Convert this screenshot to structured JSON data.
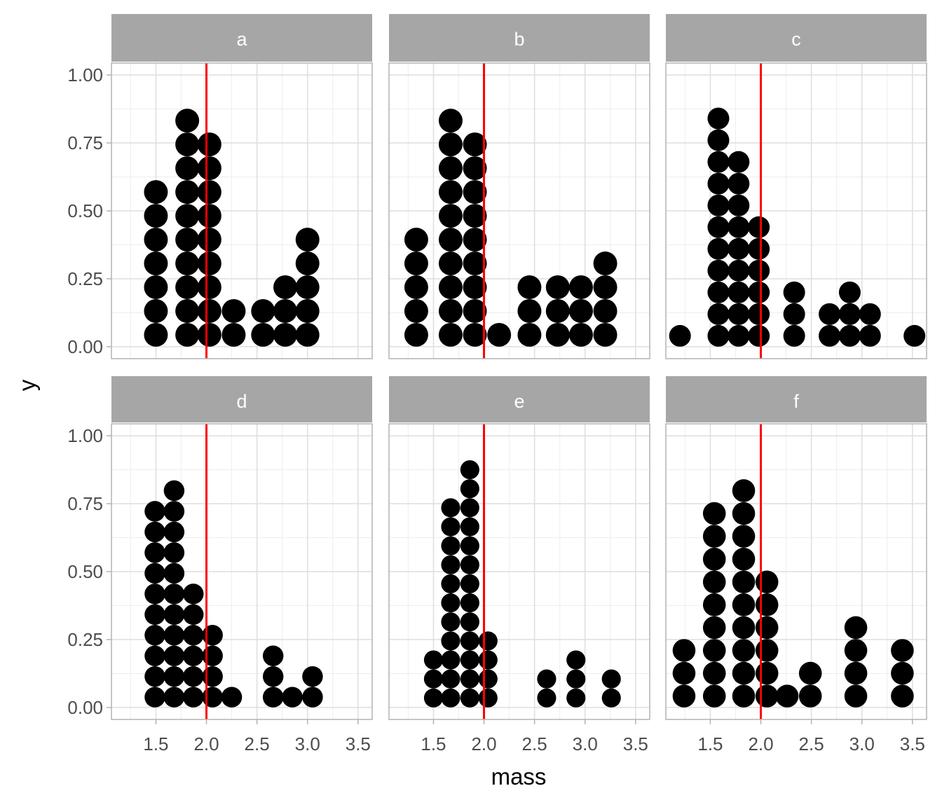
{
  "chart_data": {
    "type": "dotplot",
    "xlabel": "mass",
    "ylabel": "y",
    "xlim": [
      1.06,
      3.64
    ],
    "ylim": [
      -0.044,
      1.044
    ],
    "x_ticks": [
      "1.5",
      "2.0",
      "2.5",
      "3.0",
      "3.5"
    ],
    "x_tick_values": [
      1.5,
      2.0,
      2.5,
      3.0,
      3.5
    ],
    "y_ticks": [
      "0.00",
      "0.25",
      "0.50",
      "0.75",
      "1.00"
    ],
    "y_tick_values": [
      0,
      0.25,
      0.5,
      0.75,
      1.0
    ],
    "grid": true,
    "reference_line": {
      "x": 2.0,
      "color": "#ff0000"
    },
    "dot_color": "#000000",
    "strip_color": "#a6a6a6",
    "panels": [
      {
        "label": "a",
        "stack_step": 0.0876,
        "stacks": [
          {
            "x": 1.5,
            "n": 7
          },
          {
            "x": 1.81,
            "n": 10
          },
          {
            "x": 2.03,
            "n": 9
          },
          {
            "x": 2.27,
            "n": 2
          },
          {
            "x": 2.56,
            "n": 2
          },
          {
            "x": 2.78,
            "n": 3
          },
          {
            "x": 3.0,
            "n": 5
          }
        ]
      },
      {
        "label": "b",
        "stack_step": 0.0876,
        "stacks": [
          {
            "x": 1.33,
            "n": 5
          },
          {
            "x": 1.67,
            "n": 10
          },
          {
            "x": 1.91,
            "n": 9
          },
          {
            "x": 2.15,
            "n": 1
          },
          {
            "x": 2.45,
            "n": 3
          },
          {
            "x": 2.73,
            "n": 3
          },
          {
            "x": 2.96,
            "n": 3
          },
          {
            "x": 3.2,
            "n": 4
          }
        ]
      },
      {
        "label": "c",
        "stack_step": 0.08,
        "stacks": [
          {
            "x": 1.2,
            "n": 1
          },
          {
            "x": 1.58,
            "n": 11
          },
          {
            "x": 1.78,
            "n": 9
          },
          {
            "x": 1.98,
            "n": 6
          },
          {
            "x": 2.33,
            "n": 3
          },
          {
            "x": 2.68,
            "n": 2
          },
          {
            "x": 2.88,
            "n": 3
          },
          {
            "x": 3.08,
            "n": 2
          },
          {
            "x": 3.52,
            "n": 1
          }
        ]
      },
      {
        "label": "d",
        "stack_step": 0.076,
        "stacks": [
          {
            "x": 1.49,
            "n": 10
          },
          {
            "x": 1.68,
            "n": 11
          },
          {
            "x": 1.87,
            "n": 6
          },
          {
            "x": 2.06,
            "n": 4
          },
          {
            "x": 2.25,
            "n": 1
          },
          {
            "x": 2.66,
            "n": 3
          },
          {
            "x": 2.85,
            "n": 1
          },
          {
            "x": 3.05,
            "n": 2
          }
        ]
      },
      {
        "label": "e",
        "stack_step": 0.07,
        "stacks": [
          {
            "x": 1.5,
            "n": 3
          },
          {
            "x": 1.67,
            "n": 11
          },
          {
            "x": 1.86,
            "n": 13
          },
          {
            "x": 2.04,
            "n": 4
          },
          {
            "x": 2.62,
            "n": 2
          },
          {
            "x": 2.91,
            "n": 3
          },
          {
            "x": 3.26,
            "n": 2
          }
        ]
      },
      {
        "label": "f",
        "stack_step": 0.084,
        "stacks": [
          {
            "x": 1.24,
            "n": 3
          },
          {
            "x": 1.54,
            "n": 9
          },
          {
            "x": 1.83,
            "n": 10
          },
          {
            "x": 2.06,
            "n": 6
          },
          {
            "x": 2.26,
            "n": 1
          },
          {
            "x": 2.49,
            "n": 2
          },
          {
            "x": 2.94,
            "n": 4
          },
          {
            "x": 3.4,
            "n": 3
          }
        ]
      }
    ]
  }
}
